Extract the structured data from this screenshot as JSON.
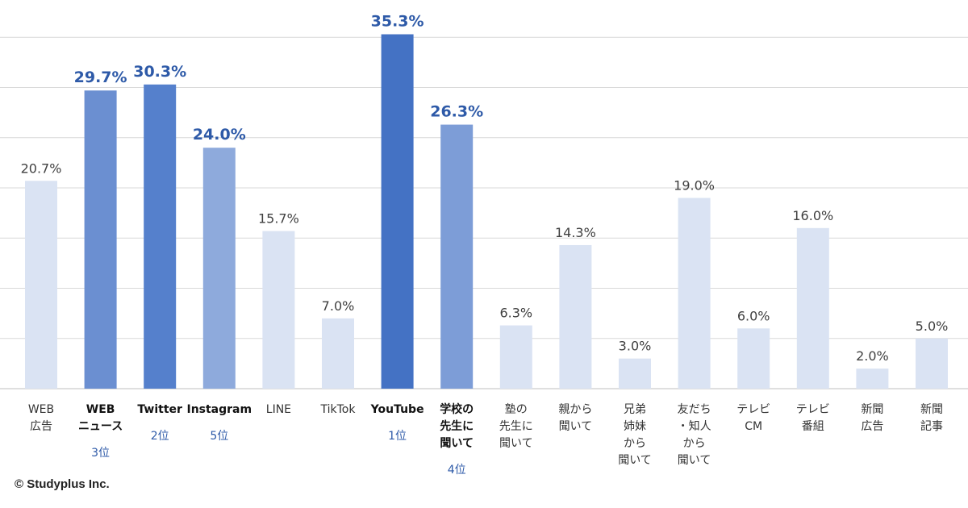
{
  "chart_data": {
    "type": "bar",
    "categories": [
      "WEB\n広告",
      "WEB\nニュース",
      "Twitter",
      "Instagram",
      "LINE",
      "TikTok",
      "YouTube",
      "学校の\n先生に\n聞いて",
      "塾の\n先生に\n聞いて",
      "親から\n聞いて",
      "兄弟\n姉妹\nから\n聞いて",
      "友だち\n・知人\nから\n聞いて",
      "テレビ\nCM",
      "テレビ\n番組",
      "新聞\n広告",
      "新聞\n記事"
    ],
    "values": [
      20.7,
      29.7,
      30.3,
      24.0,
      15.7,
      7.0,
      35.3,
      26.3,
      6.3,
      14.3,
      3.0,
      19.0,
      6.0,
      16.0,
      2.0,
      5.0
    ],
    "value_labels": [
      "20.7%",
      "29.7%",
      "30.3%",
      "24.0%",
      "15.7%",
      "7.0%",
      "35.3%",
      "26.3%",
      "6.3%",
      "14.3%",
      "3.0%",
      "19.0%",
      "6.0%",
      "16.0%",
      "2.0%",
      "5.0%"
    ],
    "ranks": [
      "",
      "3位",
      "2位",
      "5位",
      "",
      "",
      "1位",
      "4位",
      "",
      "",
      "",
      "",
      "",
      "",
      "",
      ""
    ],
    "bar_colors": [
      "#dae3f3",
      "#6b8fd1",
      "#5580cc",
      "#8eaadc",
      "#dae3f3",
      "#dae3f3",
      "#4472c4",
      "#7d9dd7",
      "#dae3f3",
      "#dae3f3",
      "#dae3f3",
      "#dae3f3",
      "#dae3f3",
      "#dae3f3",
      "#dae3f3",
      "#dae3f3"
    ],
    "highlight": [
      false,
      true,
      true,
      true,
      false,
      false,
      true,
      true,
      false,
      false,
      false,
      false,
      false,
      false,
      false,
      false
    ],
    "highlight_label_color": "#2e5aa8",
    "normal_label_color": "#404040",
    "gridline_color": "#d9d9d9",
    "ylim": [
      0,
      40
    ],
    "grid": true,
    "legend": "none",
    "title": "",
    "xlabel": "",
    "ylabel": ""
  },
  "footer": {
    "copyright": "© Studyplus Inc."
  }
}
